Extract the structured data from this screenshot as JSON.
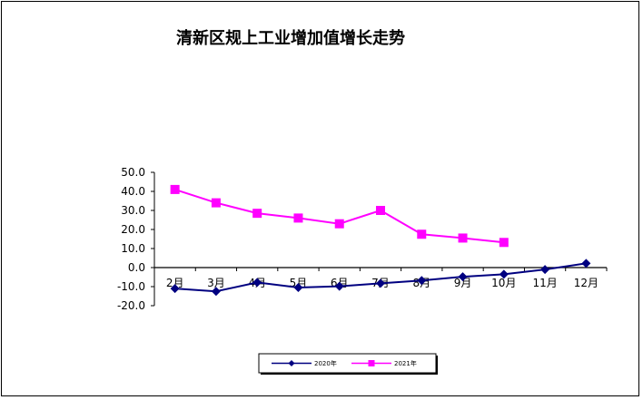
{
  "chart_data": {
    "type": "line",
    "title": "清新区规上工业增加值增长走势",
    "xlabel": "",
    "ylabel": "",
    "ylim": [
      -20,
      50
    ],
    "yticks": [
      50.0,
      40.0,
      30.0,
      20.0,
      10.0,
      0.0,
      -10.0,
      -20.0
    ],
    "ytick_labels": [
      "50.0",
      "40.0",
      "30.0",
      "20.0",
      "10.0",
      "0.0",
      "-10.0",
      "-20.0"
    ],
    "categories": [
      "2月",
      "3月",
      "4月",
      "5月",
      "6月",
      "7月",
      "8月",
      "9月",
      "10月",
      "11月",
      "12月"
    ],
    "series": [
      {
        "name": "2020年",
        "color": "#000080",
        "marker": "diamond",
        "values": [
          -11.0,
          -12.5,
          -7.8,
          -10.5,
          -9.8,
          -8.3,
          -6.8,
          -4.8,
          -3.5,
          -1.0,
          2.2
        ]
      },
      {
        "name": "2021年",
        "color": "#ff00ff",
        "marker": "square",
        "values": [
          41.0,
          34.0,
          28.5,
          26.0,
          23.0,
          30.0,
          17.5,
          15.5,
          13.2,
          null,
          null
        ]
      }
    ],
    "grid": false,
    "legend": "bottom"
  }
}
